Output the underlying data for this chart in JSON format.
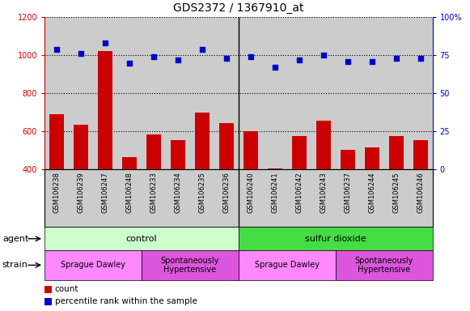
{
  "title": "GDS2372 / 1367910_at",
  "samples": [
    "GSM106238",
    "GSM106239",
    "GSM106247",
    "GSM106248",
    "GSM106233",
    "GSM106234",
    "GSM106235",
    "GSM106236",
    "GSM106240",
    "GSM106241",
    "GSM106242",
    "GSM106243",
    "GSM106237",
    "GSM106244",
    "GSM106245",
    "GSM106246"
  ],
  "counts": [
    690,
    635,
    1020,
    465,
    585,
    555,
    700,
    645,
    600,
    405,
    575,
    655,
    505,
    515,
    575,
    555
  ],
  "percentiles": [
    79,
    76,
    83,
    70,
    74,
    72,
    79,
    73,
    74,
    67,
    72,
    75,
    71,
    71,
    73,
    73
  ],
  "ylim_left": [
    400,
    1200
  ],
  "ylim_right": [
    0,
    100
  ],
  "yticks_left": [
    400,
    600,
    800,
    1000,
    1200
  ],
  "yticks_right": [
    0,
    25,
    50,
    75,
    100
  ],
  "bar_color": "#cc0000",
  "dot_color": "#0000cc",
  "agent_groups": [
    {
      "label": "control",
      "start": 0,
      "end": 8,
      "color": "#ccffcc"
    },
    {
      "label": "sulfur dioxide",
      "start": 8,
      "end": 16,
      "color": "#44dd44"
    }
  ],
  "strain_groups": [
    {
      "label": "Sprague Dawley",
      "start": 0,
      "end": 4,
      "color": "#ff88ff"
    },
    {
      "label": "Spontaneously\nHypertensive",
      "start": 4,
      "end": 8,
      "color": "#dd55dd"
    },
    {
      "label": "Sprague Dawley",
      "start": 8,
      "end": 12,
      "color": "#ff88ff"
    },
    {
      "label": "Spontaneously\nHypertensive",
      "start": 12,
      "end": 16,
      "color": "#dd55dd"
    }
  ],
  "agent_label": "agent",
  "strain_label": "strain",
  "legend_items": [
    {
      "label": "count",
      "color": "#cc0000"
    },
    {
      "label": "percentile rank within the sample",
      "color": "#0000cc"
    }
  ],
  "bg_color": "#cccccc",
  "title_fontsize": 10,
  "tick_fontsize": 7,
  "label_fontsize": 8
}
